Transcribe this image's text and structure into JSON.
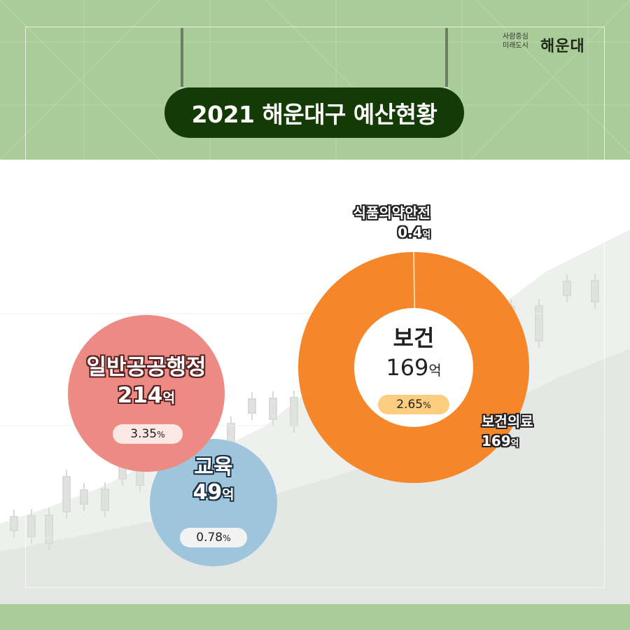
{
  "header": {
    "title": "2021 해운대구 예산현황",
    "logo_slogan_line1": "사람중심",
    "logo_slogan_line2": "미래도시",
    "logo_brand": "해운대"
  },
  "colors": {
    "band_green": "#a9cc98",
    "banner_dark_green": "#143a05",
    "general_admin": "#ec8a83",
    "education": "#9ec5dc",
    "health": "#f5862a",
    "health_pill": "#fccd7e"
  },
  "bubbles": {
    "general_admin": {
      "name": "일반공공행정",
      "amount": "214",
      "unit": "억",
      "pct": "3.35",
      "pct_unit": "%"
    },
    "education": {
      "name": "교육",
      "amount": "49",
      "unit": "억",
      "pct": "0.78",
      "pct_unit": "%"
    }
  },
  "donut": {
    "center_name": "보건",
    "center_amount": "169",
    "center_unit": "억",
    "center_pct": "2.65",
    "center_pct_unit": "%",
    "label_food_name": "식품의약안전",
    "label_food_amount": "0.4",
    "label_food_unit": "억",
    "label_health_name": "보건의료",
    "label_health_amount": "169",
    "label_health_unit": "억"
  },
  "chart_data": {
    "type": "pie",
    "title": "2021 해운대구 예산현황",
    "bubbles": [
      {
        "name": "일반공공행정",
        "value": 214,
        "unit": "억",
        "percent": 3.35
      },
      {
        "name": "교육",
        "value": 49,
        "unit": "억",
        "percent": 0.78
      },
      {
        "name": "보건",
        "value": 169,
        "unit": "억",
        "percent": 2.65
      }
    ],
    "donut": {
      "name": "보건",
      "slices": [
        {
          "name": "보건의료",
          "value": 169,
          "unit": "억"
        },
        {
          "name": "식품의약안전",
          "value": 0.4,
          "unit": "억"
        }
      ]
    }
  }
}
